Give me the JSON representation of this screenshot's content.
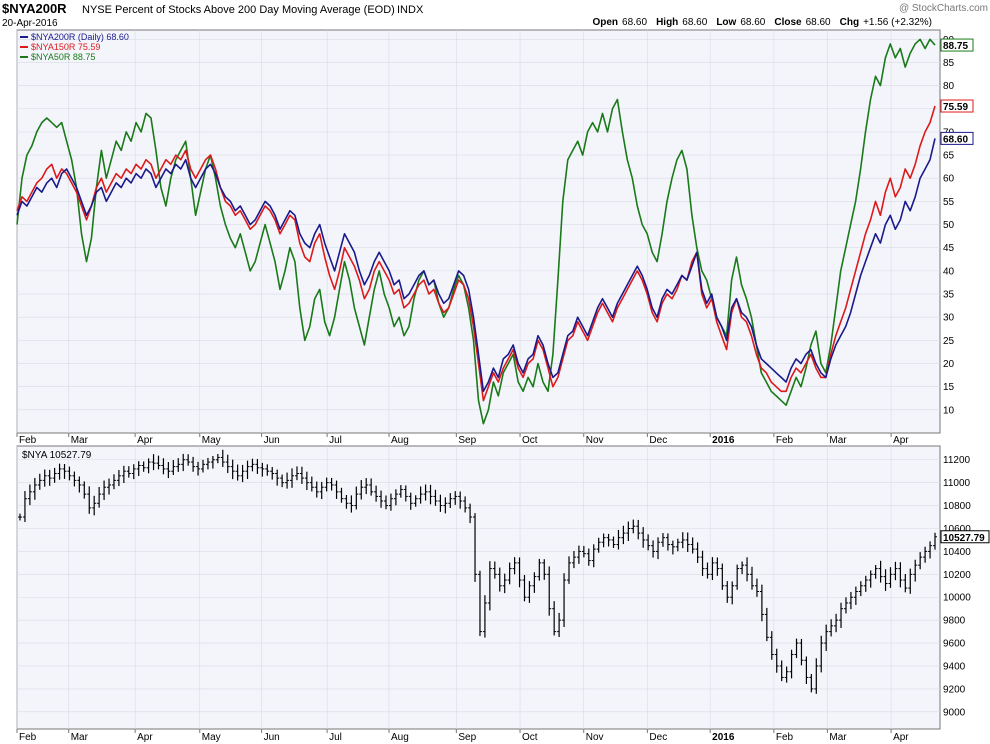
{
  "header": {
    "symbol": "$NYA200R",
    "title": "NYSE Percent of Stocks Above 200 Day Moving Average (EOD)",
    "exchange": "INDX",
    "date": "20-Apr-2016",
    "watermark": "@ StockCharts.com",
    "ohlc": [
      {
        "label": "Open",
        "value": "68.60"
      },
      {
        "label": "High",
        "value": "68.60"
      },
      {
        "label": "Low",
        "value": "68.60"
      },
      {
        "label": "Close",
        "value": "68.60"
      },
      {
        "label": "Chg",
        "value": "+1.56 (+2.32%)"
      }
    ]
  },
  "colors": {
    "nya200": "#1a1a8c",
    "nya150": "#dd1a1a",
    "nya50": "#1a7a1a",
    "price": "#000000",
    "panel_bg": "#f4f5fb",
    "grid": "#d8dbe6",
    "axis": "#777777"
  },
  "chart_data": [
    {
      "type": "line",
      "x_labels": [
        "Feb",
        "Mar",
        "Apr",
        "May",
        "Jun",
        "Jul",
        "Aug",
        "Sep",
        "Oct",
        "Nov",
        "Dec",
        "2016",
        "Feb",
        "Mar",
        "Apr"
      ],
      "ylim": [
        5,
        92
      ],
      "y_ticks": [
        10,
        15,
        20,
        25,
        30,
        35,
        40,
        45,
        50,
        55,
        60,
        65,
        70,
        75,
        80,
        85,
        90
      ],
      "grid": true,
      "legend_position": "top-left",
      "series": [
        {
          "name": "$NYA200R (Daily) 68.60",
          "last": "68.60",
          "color_key": "nya200",
          "values": [
            52,
            55,
            54,
            56,
            58,
            57,
            59,
            60,
            58,
            61,
            62,
            60,
            58,
            55,
            52,
            54,
            57,
            58,
            55,
            57,
            59,
            58,
            60,
            59,
            61,
            60,
            62,
            61,
            58,
            60,
            62,
            61,
            63,
            62,
            64,
            60,
            58,
            60,
            62,
            63,
            61,
            58,
            56,
            55,
            53,
            54,
            52,
            50,
            51,
            53,
            55,
            54,
            52,
            49,
            51,
            53,
            52,
            48,
            46,
            45,
            48,
            50,
            46,
            43,
            40,
            44,
            48,
            46,
            44,
            40,
            37,
            39,
            42,
            44,
            42,
            40,
            37,
            38,
            34,
            35,
            37,
            39,
            40,
            37,
            38,
            35,
            33,
            34,
            37,
            40,
            39,
            36,
            30,
            22,
            14,
            16,
            19,
            17,
            21,
            22,
            24,
            20,
            18,
            21,
            22,
            26,
            24,
            20,
            17,
            18,
            22,
            26,
            27,
            30,
            28,
            26,
            29,
            32,
            34,
            32,
            30,
            33,
            35,
            37,
            39,
            41,
            39,
            36,
            32,
            30,
            34,
            36,
            35,
            37,
            39,
            38,
            41,
            44,
            36,
            33,
            35,
            30,
            28,
            25,
            32,
            34,
            31,
            30,
            28,
            24,
            21,
            20,
            19,
            18,
            17,
            16,
            19,
            21,
            20,
            22,
            23,
            20,
            18,
            17,
            21,
            24,
            26,
            28,
            31,
            35,
            39,
            42,
            45,
            48,
            46,
            50,
            52,
            49,
            51,
            55,
            53,
            56,
            60,
            62,
            64,
            68.6
          ]
        },
        {
          "name": "$NYA150R 75.59",
          "last": "75.59",
          "color_key": "nya150",
          "values": [
            53,
            56,
            55,
            57,
            59,
            60,
            62,
            63,
            60,
            62,
            61,
            59,
            57,
            54,
            51,
            54,
            58,
            60,
            57,
            59,
            61,
            60,
            62,
            61,
            63,
            62,
            64,
            63,
            60,
            62,
            64,
            63,
            65,
            64,
            66,
            62,
            60,
            62,
            64,
            65,
            62,
            58,
            55,
            54,
            52,
            53,
            51,
            49,
            50,
            52,
            54,
            53,
            51,
            48,
            50,
            52,
            51,
            46,
            43,
            42,
            46,
            48,
            43,
            39,
            36,
            40,
            45,
            43,
            41,
            38,
            34,
            36,
            40,
            42,
            40,
            38,
            35,
            36,
            32,
            33,
            35,
            37,
            38,
            35,
            36,
            33,
            31,
            32,
            35,
            38,
            37,
            34,
            28,
            20,
            12,
            15,
            18,
            16,
            19,
            21,
            23,
            19,
            17,
            20,
            21,
            25,
            23,
            19,
            15,
            17,
            21,
            25,
            26,
            29,
            27,
            25,
            28,
            31,
            33,
            31,
            29,
            32,
            34,
            36,
            38,
            40,
            38,
            35,
            31,
            29,
            33,
            35,
            34,
            36,
            39,
            38,
            42,
            44,
            35,
            32,
            34,
            29,
            26,
            23,
            31,
            34,
            30,
            29,
            26,
            22,
            19,
            18,
            16,
            15,
            14,
            14,
            17,
            19,
            18,
            20,
            22,
            19,
            17,
            17,
            22,
            26,
            29,
            32,
            36,
            40,
            44,
            48,
            51,
            55,
            52,
            57,
            60,
            56,
            58,
            62,
            60,
            63,
            67,
            70,
            72,
            75.59
          ]
        },
        {
          "name": "$NYA50R 88.75",
          "last": "88.75",
          "color_key": "nya50",
          "values": [
            50,
            60,
            65,
            67,
            70,
            72,
            73,
            72,
            71,
            72,
            68,
            64,
            58,
            48,
            42,
            47,
            58,
            66,
            60,
            64,
            68,
            66,
            70,
            68,
            72,
            70,
            74,
            73,
            66,
            58,
            54,
            60,
            64,
            66,
            68,
            60,
            52,
            57,
            62,
            65,
            60,
            54,
            50,
            47,
            45,
            48,
            44,
            40,
            42,
            46,
            50,
            46,
            42,
            36,
            40,
            45,
            42,
            32,
            25,
            28,
            34,
            36,
            29,
            26,
            30,
            36,
            42,
            38,
            32,
            28,
            24,
            30,
            36,
            40,
            35,
            32,
            28,
            30,
            26,
            28,
            34,
            38,
            40,
            37,
            38,
            33,
            30,
            32,
            36,
            39,
            37,
            32,
            25,
            12,
            7,
            10,
            16,
            13,
            18,
            20,
            22,
            16,
            14,
            17,
            15,
            20,
            16,
            14,
            22,
            38,
            55,
            64,
            66,
            68,
            65,
            70,
            72,
            70,
            74,
            70,
            75,
            77,
            70,
            64,
            60,
            54,
            50,
            48,
            44,
            42,
            48,
            55,
            60,
            64,
            66,
            62,
            52,
            45,
            40,
            38,
            34,
            30,
            28,
            26,
            38,
            43,
            37,
            34,
            30,
            24,
            18,
            16,
            14,
            13,
            12,
            11,
            14,
            17,
            15,
            19,
            24,
            27,
            20,
            18,
            24,
            32,
            40,
            45,
            50,
            55,
            62,
            70,
            77,
            82,
            80,
            86,
            89,
            86,
            88,
            84,
            87,
            89,
            90,
            88,
            90,
            88.75
          ]
        }
      ]
    },
    {
      "type": "ohlc",
      "name": "$NYA 10527.79",
      "last": "10527.79",
      "x_labels": [
        "Feb",
        "Mar",
        "Apr",
        "May",
        "Jun",
        "Jul",
        "Aug",
        "Sep",
        "Oct",
        "Nov",
        "Dec",
        "2016",
        "Feb",
        "Mar",
        "Apr"
      ],
      "ylim": [
        8850,
        11320
      ],
      "y_ticks": [
        9000,
        9200,
        9400,
        9600,
        9800,
        10000,
        10200,
        10400,
        10600,
        10800,
        11000,
        11200
      ],
      "grid": true,
      "close": [
        10700,
        10860,
        10920,
        10980,
        11020,
        11060,
        11040,
        11080,
        11120,
        11100,
        11060,
        11020,
        10980,
        10900,
        10780,
        10820,
        10900,
        10960,
        10980,
        11020,
        11060,
        11100,
        11080,
        11120,
        11150,
        11130,
        11180,
        11170,
        11150,
        11120,
        11100,
        11140,
        11160,
        11200,
        11180,
        11140,
        11120,
        11160,
        11180,
        11200,
        11220,
        11180,
        11140,
        11100,
        11060,
        11100,
        11140,
        11160,
        11130,
        11120,
        11100,
        11080,
        11040,
        11000,
        11020,
        11060,
        11080,
        11040,
        11000,
        10960,
        10920,
        10960,
        11000,
        10980,
        10920,
        10860,
        10820,
        10800,
        10900,
        10960,
        10980,
        10920,
        10880,
        10840,
        10800,
        10860,
        10900,
        10940,
        10880,
        10820,
        10860,
        10900,
        10920,
        10880,
        10840,
        10800,
        10820,
        10860,
        10880,
        10840,
        10780,
        10700,
        10200,
        9700,
        9950,
        10250,
        10200,
        10100,
        10150,
        10250,
        10300,
        10150,
        10000,
        10100,
        10180,
        10300,
        10200,
        9900,
        9700,
        9800,
        10150,
        10300,
        10350,
        10400,
        10380,
        10320,
        10420,
        10480,
        10520,
        10500,
        10460,
        10520,
        10560,
        10600,
        10620,
        10560,
        10500,
        10450,
        10400,
        10480,
        10520,
        10460,
        10440,
        10480,
        10500,
        10460,
        10420,
        10350,
        10250,
        10200,
        10300,
        10250,
        10100,
        10000,
        10100,
        10250,
        10280,
        10200,
        10100,
        10050,
        9850,
        9650,
        9500,
        9400,
        9300,
        9350,
        9500,
        9600,
        9450,
        9300,
        9200,
        9400,
        9600,
        9700,
        9750,
        9800,
        9900,
        9950,
        10000,
        10050,
        10100,
        10150,
        10200,
        10250,
        10180,
        10120,
        10200,
        10250,
        10150,
        10080,
        10200,
        10280,
        10350,
        10400,
        10450,
        10527.79
      ]
    }
  ]
}
